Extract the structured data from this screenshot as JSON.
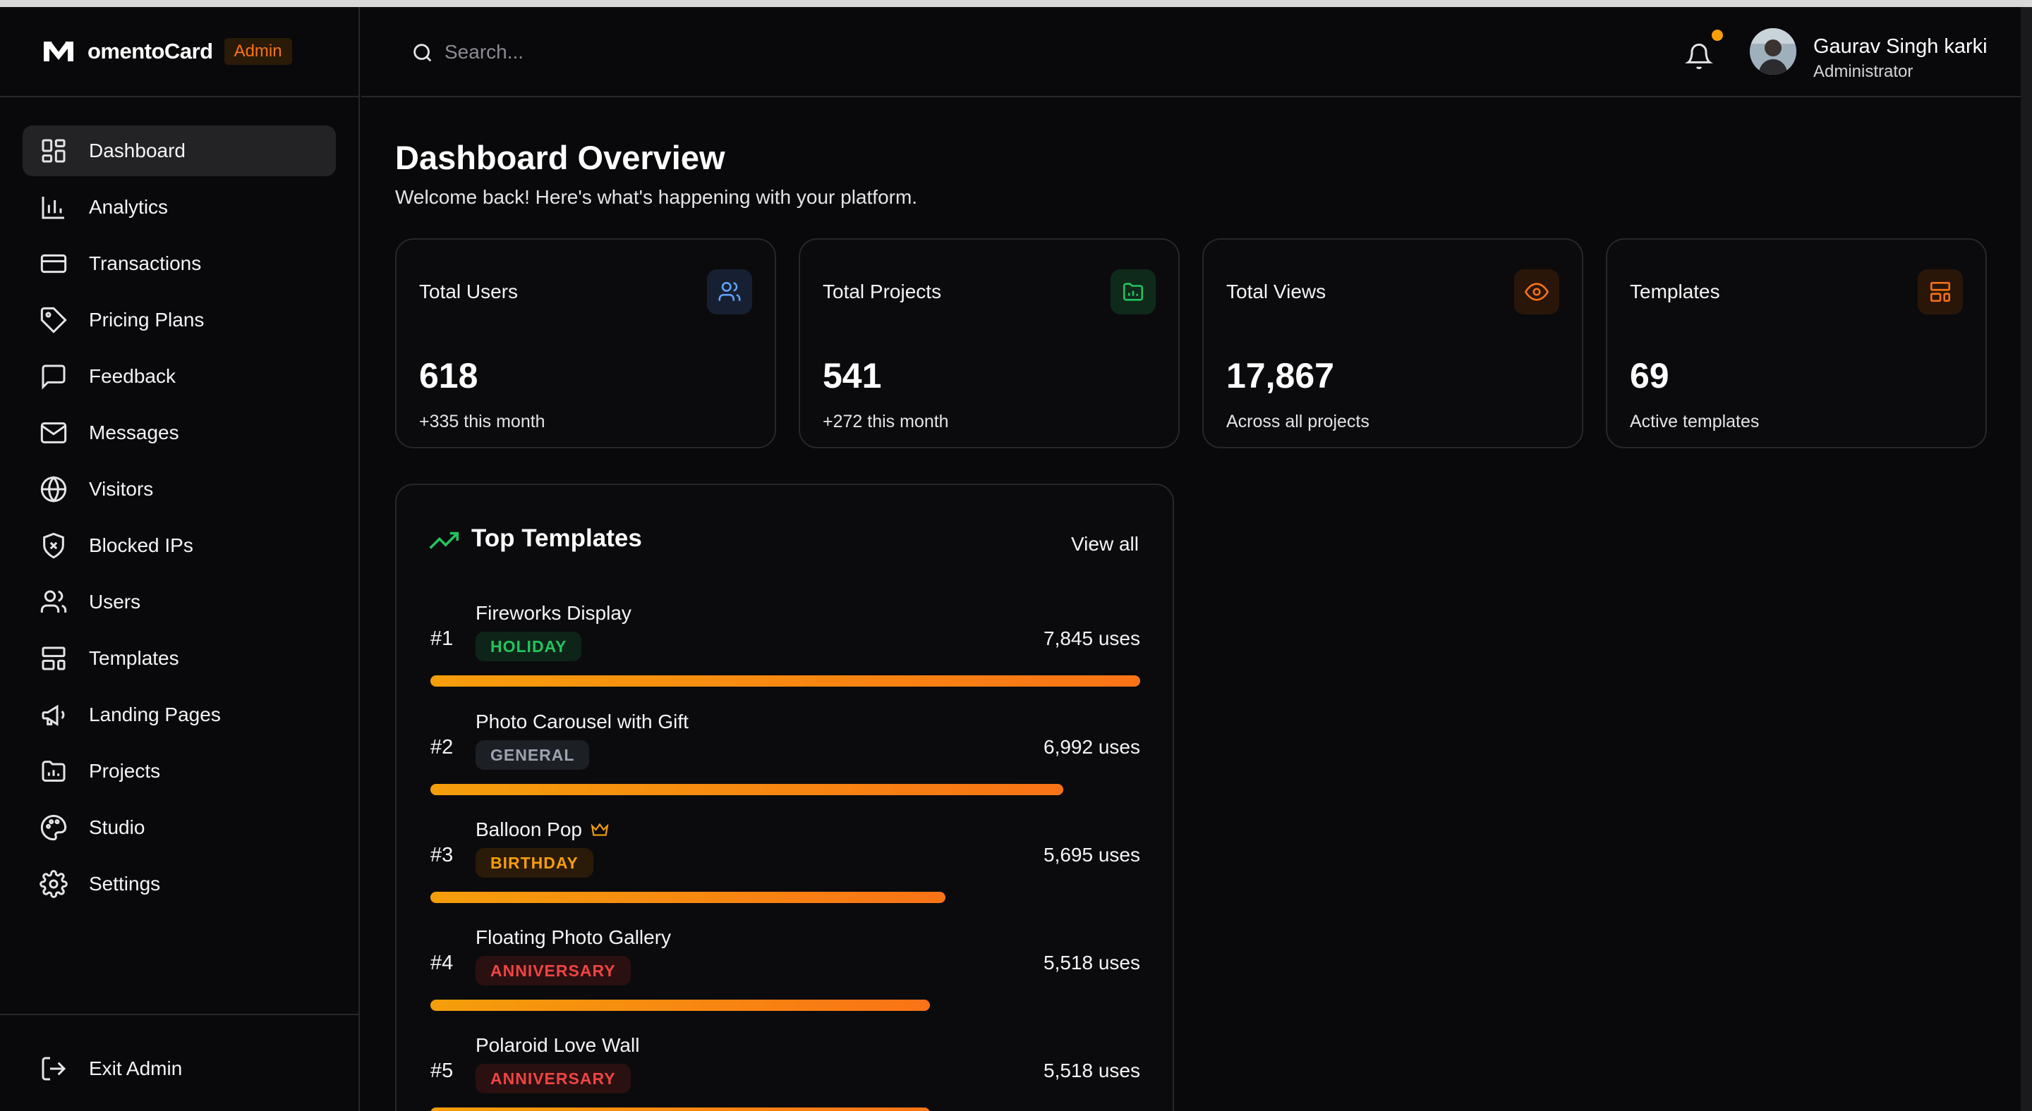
{
  "brand": {
    "name": "omentoCard",
    "badge": "Admin"
  },
  "sidebar": {
    "items": [
      {
        "label": "Dashboard",
        "icon": "dashboard-icon",
        "active": true
      },
      {
        "label": "Analytics",
        "icon": "analytics-icon"
      },
      {
        "label": "Transactions",
        "icon": "credit-card-icon"
      },
      {
        "label": "Pricing Plans",
        "icon": "tag-icon"
      },
      {
        "label": "Feedback",
        "icon": "message-square-icon"
      },
      {
        "label": "Messages",
        "icon": "mail-icon"
      },
      {
        "label": "Visitors",
        "icon": "globe-icon"
      },
      {
        "label": "Blocked IPs",
        "icon": "shield-x-icon"
      },
      {
        "label": "Users",
        "icon": "users-icon"
      },
      {
        "label": "Templates",
        "icon": "layout-icon"
      },
      {
        "label": "Landing Pages",
        "icon": "megaphone-icon"
      },
      {
        "label": "Projects",
        "icon": "folder-chart-icon"
      },
      {
        "label": "Studio",
        "icon": "palette-icon"
      },
      {
        "label": "Settings",
        "icon": "gear-icon"
      }
    ],
    "exit_label": "Exit Admin"
  },
  "header": {
    "search_placeholder": "Search...",
    "user_name": "Gaurav Singh karki",
    "user_role": "Administrator"
  },
  "main": {
    "title": "Dashboard Overview",
    "subtitle": "Welcome back! Here's what's happening with your platform.",
    "stats": [
      {
        "title": "Total Users",
        "value": "618",
        "sub": "+335 this month",
        "icon": "users-icon",
        "color": "#60a5fa",
        "bg": "#172033"
      },
      {
        "title": "Total Projects",
        "value": "541",
        "sub": "+272 this month",
        "icon": "folder-chart-icon",
        "color": "#22c55e",
        "bg": "#0f2a1a"
      },
      {
        "title": "Total Views",
        "value": "17,867",
        "sub": "Across all projects",
        "icon": "eye-icon",
        "color": "#f97316",
        "bg": "#2a1608"
      },
      {
        "title": "Templates",
        "value": "69",
        "sub": "Active templates",
        "icon": "layout-icon",
        "color": "#f97316",
        "bg": "#2a1608"
      }
    ],
    "top_templates": {
      "title": "Top Templates",
      "view_all": "View all",
      "items": [
        {
          "rank": "#1",
          "name": "Fireworks Display",
          "category": "HOLIDAY",
          "uses": "7,845 uses",
          "uses_value": 7845,
          "crown": false,
          "badge_color": "#22c55e",
          "badge_bg": "#0f2418"
        },
        {
          "rank": "#2",
          "name": "Photo Carousel with Gift",
          "category": "GENERAL",
          "uses": "6,992 uses",
          "uses_value": 6992,
          "crown": false,
          "badge_color": "#9ca3af",
          "badge_bg": "#1c1f24"
        },
        {
          "rank": "#3",
          "name": "Balloon Pop",
          "category": "BIRTHDAY",
          "uses": "5,695 uses",
          "uses_value": 5695,
          "crown": true,
          "badge_color": "#f59e0b",
          "badge_bg": "#2a1a08"
        },
        {
          "rank": "#4",
          "name": "Floating Photo Gallery",
          "category": "ANNIVERSARY",
          "uses": "5,518 uses",
          "uses_value": 5518,
          "crown": false,
          "badge_color": "#ef4444",
          "badge_bg": "#2a1010"
        },
        {
          "rank": "#5",
          "name": "Polaroid Love Wall",
          "category": "ANNIVERSARY",
          "uses": "5,518 uses",
          "uses_value": 5518,
          "crown": false,
          "badge_color": "#ef4444",
          "badge_bg": "#2a1010"
        }
      ]
    }
  }
}
